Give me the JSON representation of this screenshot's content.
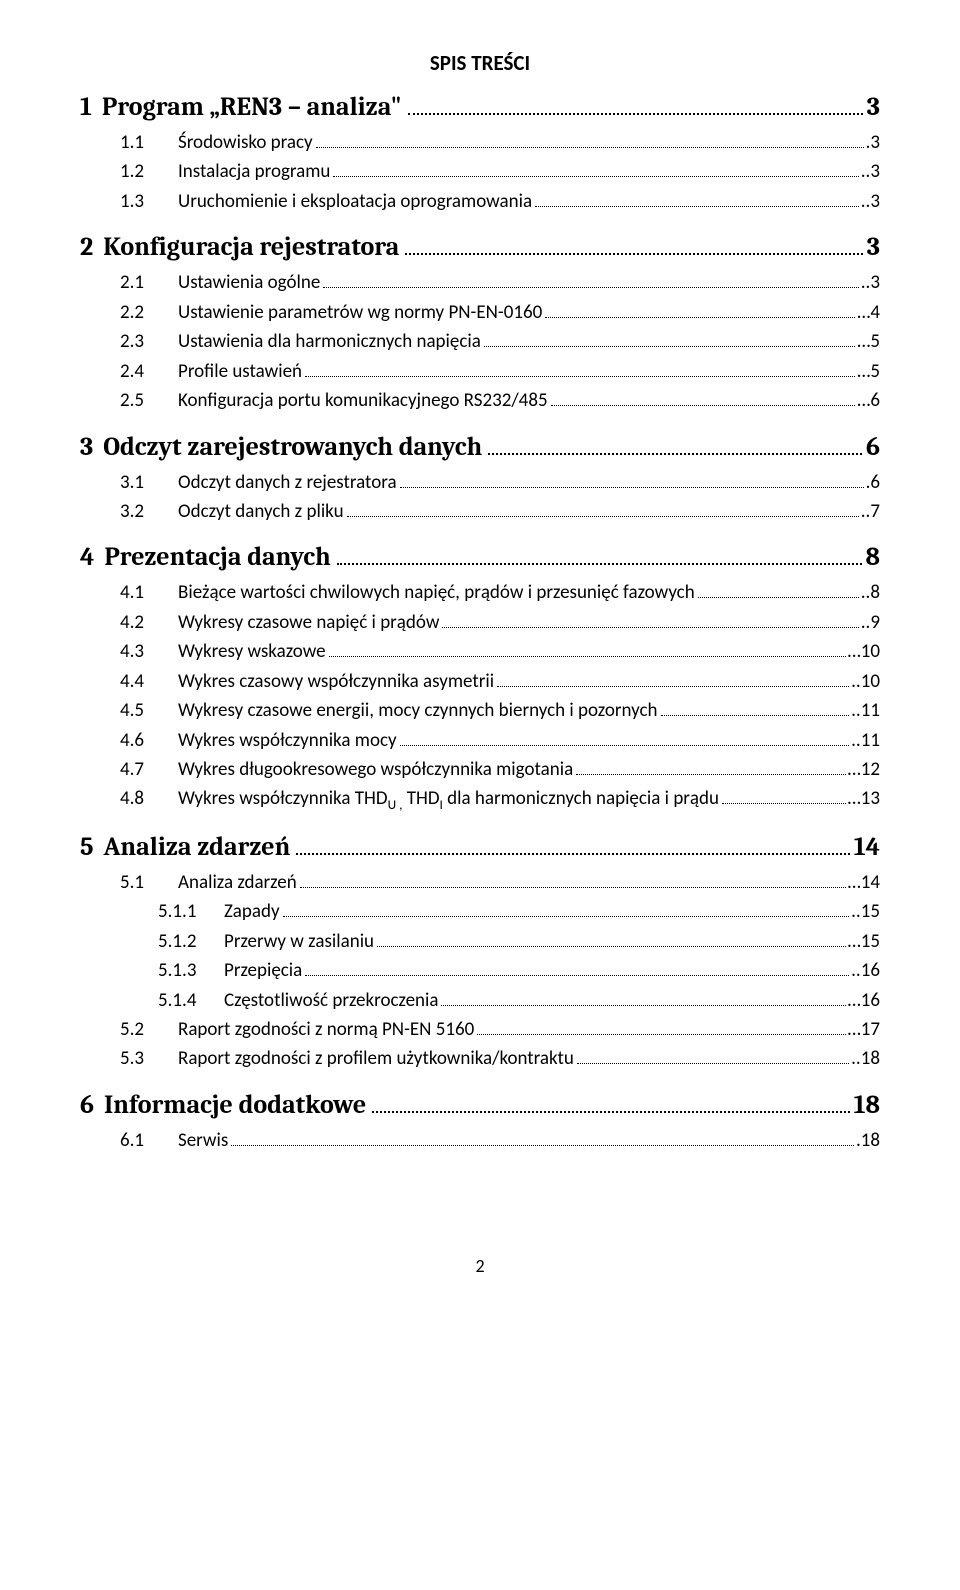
{
  "title": "SPIS TREŚCI",
  "pageNumber": "2",
  "sections": [
    {
      "num": "1",
      "label": "Program „REN3 – analiza\"",
      "page": "3",
      "entries": [
        {
          "num": "1.1",
          "label": "Środowisko pracy",
          "page": ".3"
        },
        {
          "num": "1.2",
          "label": "Instalacja programu",
          "page": "..3"
        },
        {
          "num": "1.3",
          "label": "Uruchomienie i eksploatacja oprogramowania",
          "page": "..3"
        }
      ]
    },
    {
      "num": "2",
      "label": "Konfiguracja rejestratora",
      "page": "3",
      "entries": [
        {
          "num": "2.1",
          "label": "Ustawienia ogólne",
          "page": "..3"
        },
        {
          "num": "2.2",
          "label": "Ustawienie parametrów wg normy PN-EN-0160",
          "page": "…4"
        },
        {
          "num": "2.3",
          "label": "Ustawienia dla harmonicznych napięcia",
          "page": "…5"
        },
        {
          "num": "2.4",
          "label": "Profile ustawień",
          "page": "…5"
        },
        {
          "num": "2.5",
          "label": "Konfiguracja portu komunikacyjnego RS232/485",
          "page": "…6"
        }
      ]
    },
    {
      "num": "3",
      "label": "Odczyt zarejestrowanych danych",
      "page": "6",
      "entries": [
        {
          "num": "3.1",
          "label": "Odczyt danych z rejestratora",
          "page": ".6"
        },
        {
          "num": "3.2",
          "label": "Odczyt danych z pliku",
          "page": "..7"
        }
      ]
    },
    {
      "num": "4",
      "label": "Prezentacja danych",
      "page": "8",
      "entries": [
        {
          "num": "4.1",
          "label": "Bieżące wartości  chwilowych napięć, prądów i przesunięć fazowych",
          "page": "..8"
        },
        {
          "num": "4.2",
          "label": "Wykresy  czasowe napięć i prądów",
          "page": "..9"
        },
        {
          "num": "4.3",
          "label": "Wykresy wskazowe",
          "page": "…10"
        },
        {
          "num": "4.4",
          "label": "Wykres czasowy współczynnika asymetrii",
          "page": "..10"
        },
        {
          "num": "4.5",
          "label": "Wykresy czasowe energii, mocy czynnych biernych i pozornych",
          "page": "..11"
        },
        {
          "num": "4.6",
          "label": "Wykres współczynnika mocy",
          "page": "..11"
        },
        {
          "num": "4.7",
          "label": "Wykres długookresowego współczynnika migotania",
          "page": "…12"
        },
        {
          "num": "4.8",
          "label": "Wykres współczynnika THD",
          "sub1": "U ,",
          "mid": " THD",
          "sub2": "I",
          "tail": "  dla  harmonicznych napięcia i prądu",
          "page": "…13"
        }
      ]
    },
    {
      "num": "5",
      "label": "Analiza zdarzeń",
      "page": "14",
      "entries": [
        {
          "num": "5.1",
          "label": "Analiza zdarzeń",
          "page": "…14",
          "sub": [
            {
              "num": "5.1.1",
              "label": "Zapady",
              "page": "..15"
            },
            {
              "num": "5.1.2",
              "label": "Przerwy w zasilaniu",
              "page": "…15"
            },
            {
              "num": "5.1.3",
              "label": "Przepięcia",
              "page": "..16"
            },
            {
              "num": "5.1.4",
              "label": "Częstotliwość przekroczenia",
              "page": "…16"
            }
          ]
        },
        {
          "num": "5.2",
          "label": "Raport  zgodności  z normą PN-EN 5160",
          "page": "…17"
        },
        {
          "num": "5.3",
          "label": "Raport zgodności z profilem użytkownika/kontraktu",
          "page": "..18"
        }
      ]
    },
    {
      "num": "6",
      "label": "Informacje dodatkowe",
      "page": "18",
      "entries": [
        {
          "num": "6.1",
          "label": "Serwis",
          "page": ".18"
        }
      ]
    }
  ]
}
